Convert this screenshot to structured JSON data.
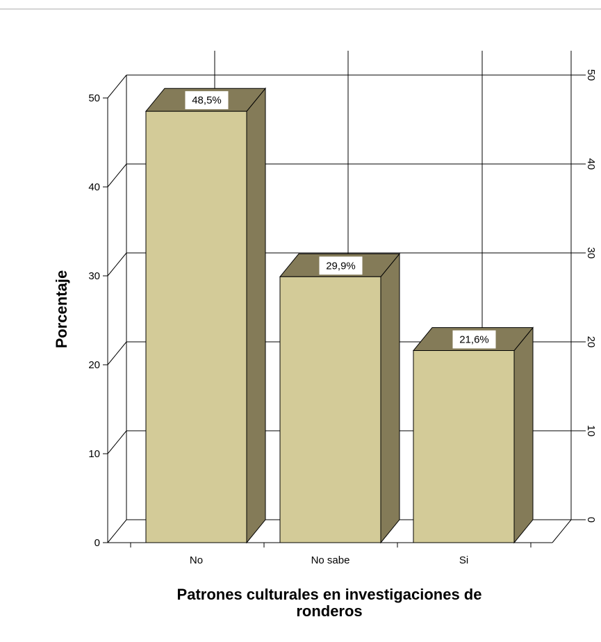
{
  "chart_data": {
    "type": "bar",
    "categories": [
      "No",
      "No sabe",
      "Si"
    ],
    "values": [
      48.5,
      29.9,
      21.6
    ],
    "data_labels": [
      "48,5%",
      "29,9%",
      "21,6%"
    ],
    "xlabel": "Patrones culturales en investigaciones de ronderos",
    "xlabel_lines": [
      "Patrones culturales en investigaciones de",
      "ronderos"
    ],
    "ylabel": "Porcentaje",
    "ylim": [
      0,
      50
    ],
    "yticks": [
      "0",
      "10",
      "20",
      "30",
      "40",
      "50"
    ],
    "grid": true,
    "three_d": true,
    "colors": {
      "bar_front": "#d3cb98",
      "bar_top": "#847b58",
      "bar_side": "#847b58",
      "grid": "#000000"
    }
  }
}
